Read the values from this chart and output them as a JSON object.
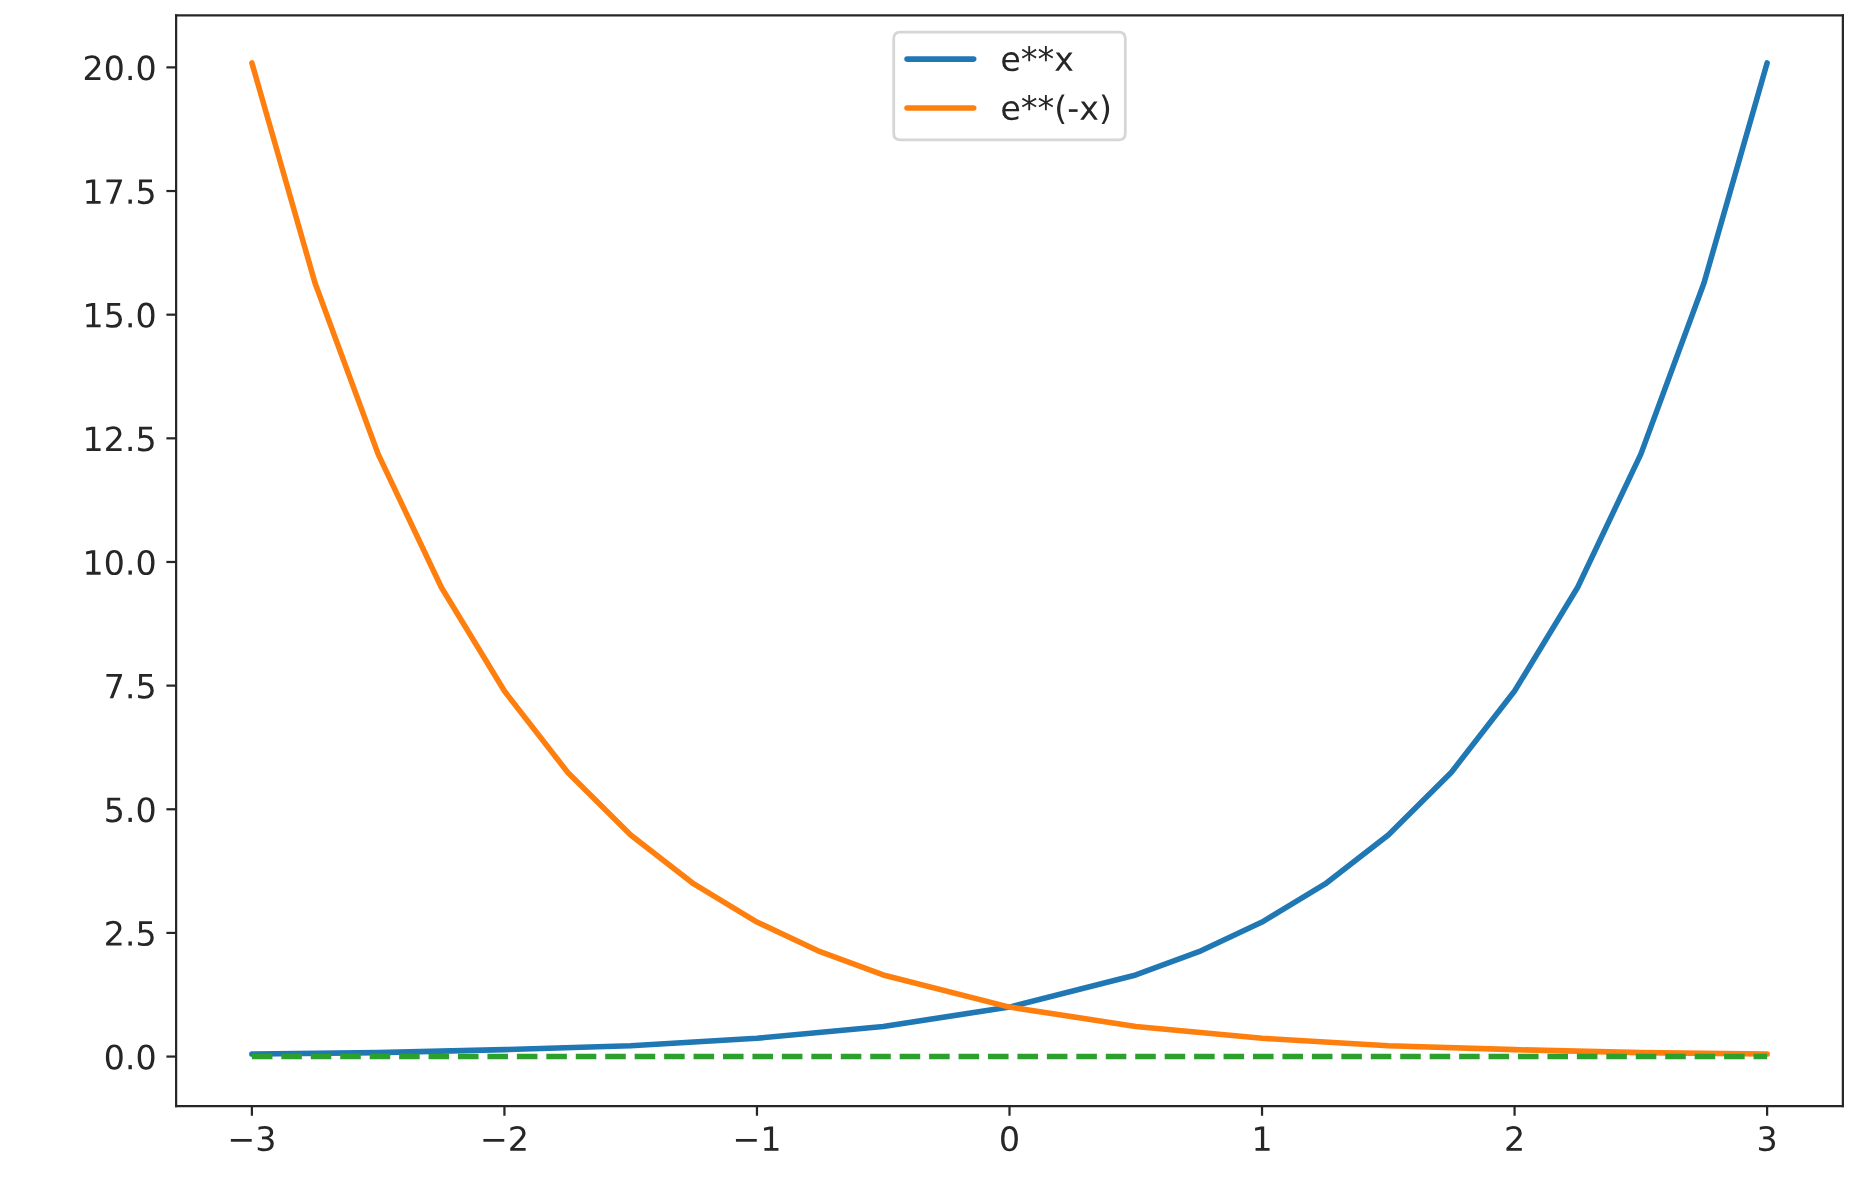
{
  "chart_data": {
    "type": "line",
    "x": [
      -3,
      -2.5,
      -2,
      -1.5,
      -1,
      -0.5,
      0,
      0.5,
      0.75,
      1,
      1.25,
      1.5,
      1.75,
      2,
      2.25,
      2.5,
      2.75,
      3
    ],
    "series": [
      {
        "name": "e**x",
        "color": "#1f77b4",
        "values": [
          0.05,
          0.08,
          0.14,
          0.22,
          0.37,
          0.61,
          1.0,
          1.65,
          2.12,
          2.72,
          3.49,
          4.48,
          5.75,
          7.39,
          9.49,
          12.18,
          15.64,
          20.09
        ]
      },
      {
        "name": "e**(-x)",
        "color": "#ff7f0e",
        "x": [
          -3,
          -2.75,
          -2.5,
          -2.25,
          -2,
          -1.75,
          -1.5,
          -1.25,
          -1,
          -0.75,
          -0.5,
          0,
          0.5,
          1,
          1.5,
          2,
          2.5,
          3
        ],
        "values": [
          20.09,
          15.64,
          12.18,
          9.49,
          7.39,
          5.75,
          4.48,
          3.49,
          2.72,
          2.12,
          1.65,
          1.0,
          0.61,
          0.37,
          0.22,
          0.14,
          0.08,
          0.05
        ]
      },
      {
        "color": "#2ca02c",
        "x": [
          -3,
          3
        ],
        "values": [
          0,
          0
        ],
        "line_style": "dashed"
      }
    ],
    "xlim": [
      -3.3,
      3.3
    ],
    "ylim": [
      -1.0,
      21.05
    ],
    "xticks": [
      {
        "value": -3,
        "label": "−3"
      },
      {
        "value": -2,
        "label": "−2"
      },
      {
        "value": -1,
        "label": "−1"
      },
      0,
      1,
      2,
      3
    ],
    "yticks": [
      {
        "value": 0,
        "label": "0.0"
      },
      {
        "value": 2.5,
        "label": "2.5"
      },
      {
        "value": 5,
        "label": "5.0"
      },
      {
        "value": 7.5,
        "label": "7.5"
      },
      {
        "value": 10,
        "label": "10.0"
      },
      {
        "value": 12.5,
        "label": "12.5"
      },
      {
        "value": 15,
        "label": "15.0"
      },
      {
        "value": 17.5,
        "label": "17.5"
      },
      {
        "value": 20,
        "label": "20.0"
      }
    ],
    "legend": "top",
    "grid": false,
    "line_style": "solid"
  }
}
